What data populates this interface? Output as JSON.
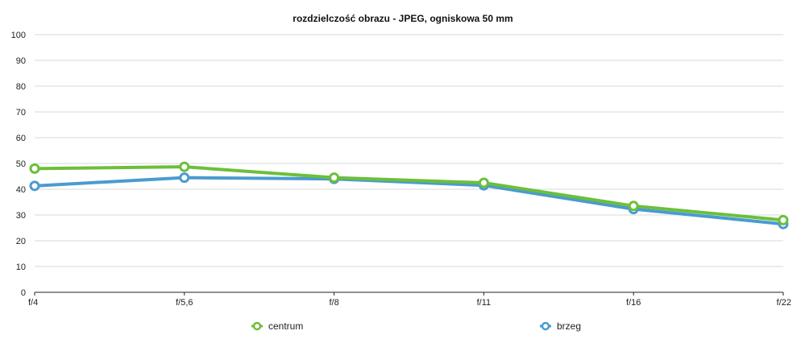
{
  "chart_data": {
    "type": "line",
    "title": "rozdzielczość obrazu - JPEG, ogniskowa 50 mm",
    "categories": [
      "f/4",
      "f/5,6",
      "f/8",
      "f/11",
      "f/16",
      "f/22"
    ],
    "series": [
      {
        "name": "centrum",
        "color": "#6cbf3a",
        "values": [
          48,
          48.7,
          44.5,
          42.5,
          33.5,
          28
        ]
      },
      {
        "name": "brzeg",
        "color": "#4a9bd1",
        "values": [
          41.3,
          44.5,
          44,
          41.5,
          32.3,
          26.5
        ]
      }
    ],
    "ylim": [
      0,
      100
    ],
    "yticks": [
      0,
      10,
      20,
      30,
      40,
      50,
      60,
      70,
      80,
      90,
      100
    ],
    "grid": true,
    "legend_position": "bottom"
  }
}
